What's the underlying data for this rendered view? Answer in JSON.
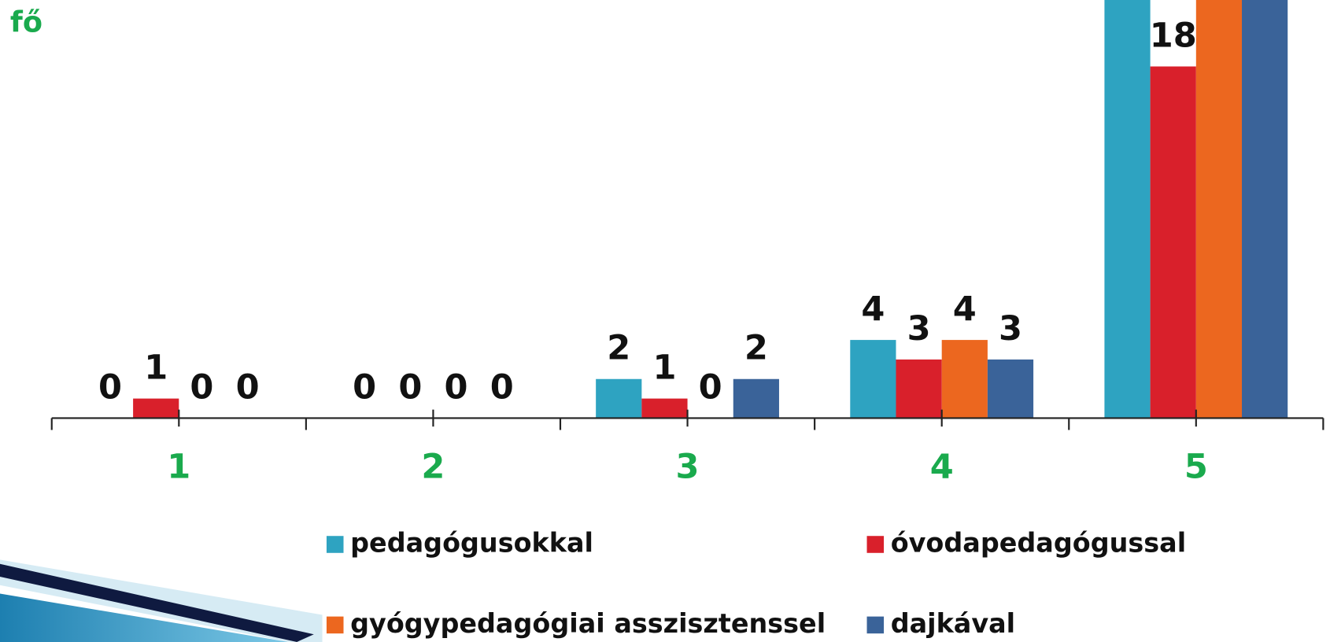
{
  "chart_data": {
    "type": "bar",
    "y_label": "fő",
    "categories": [
      "1",
      "2",
      "3",
      "4",
      "5"
    ],
    "series": [
      {
        "name": "pedagógusokkal",
        "color": "#2ea3c1",
        "values": [
          0,
          0,
          2,
          4,
          22
        ]
      },
      {
        "name": "óvodapedagógussal",
        "color": "#d9202b",
        "values": [
          1,
          0,
          1,
          3,
          18
        ]
      },
      {
        "name": "gyógypedagógiai asszisztenssel",
        "color": "#ec671f",
        "values": [
          0,
          0,
          0,
          4,
          22
        ]
      },
      {
        "name": "dajkával",
        "color": "#3a6399",
        "values": [
          0,
          0,
          2,
          3,
          22
        ]
      }
    ],
    "ylim": [
      0,
      21.4
    ],
    "category_color": "#1aaa4d"
  }
}
